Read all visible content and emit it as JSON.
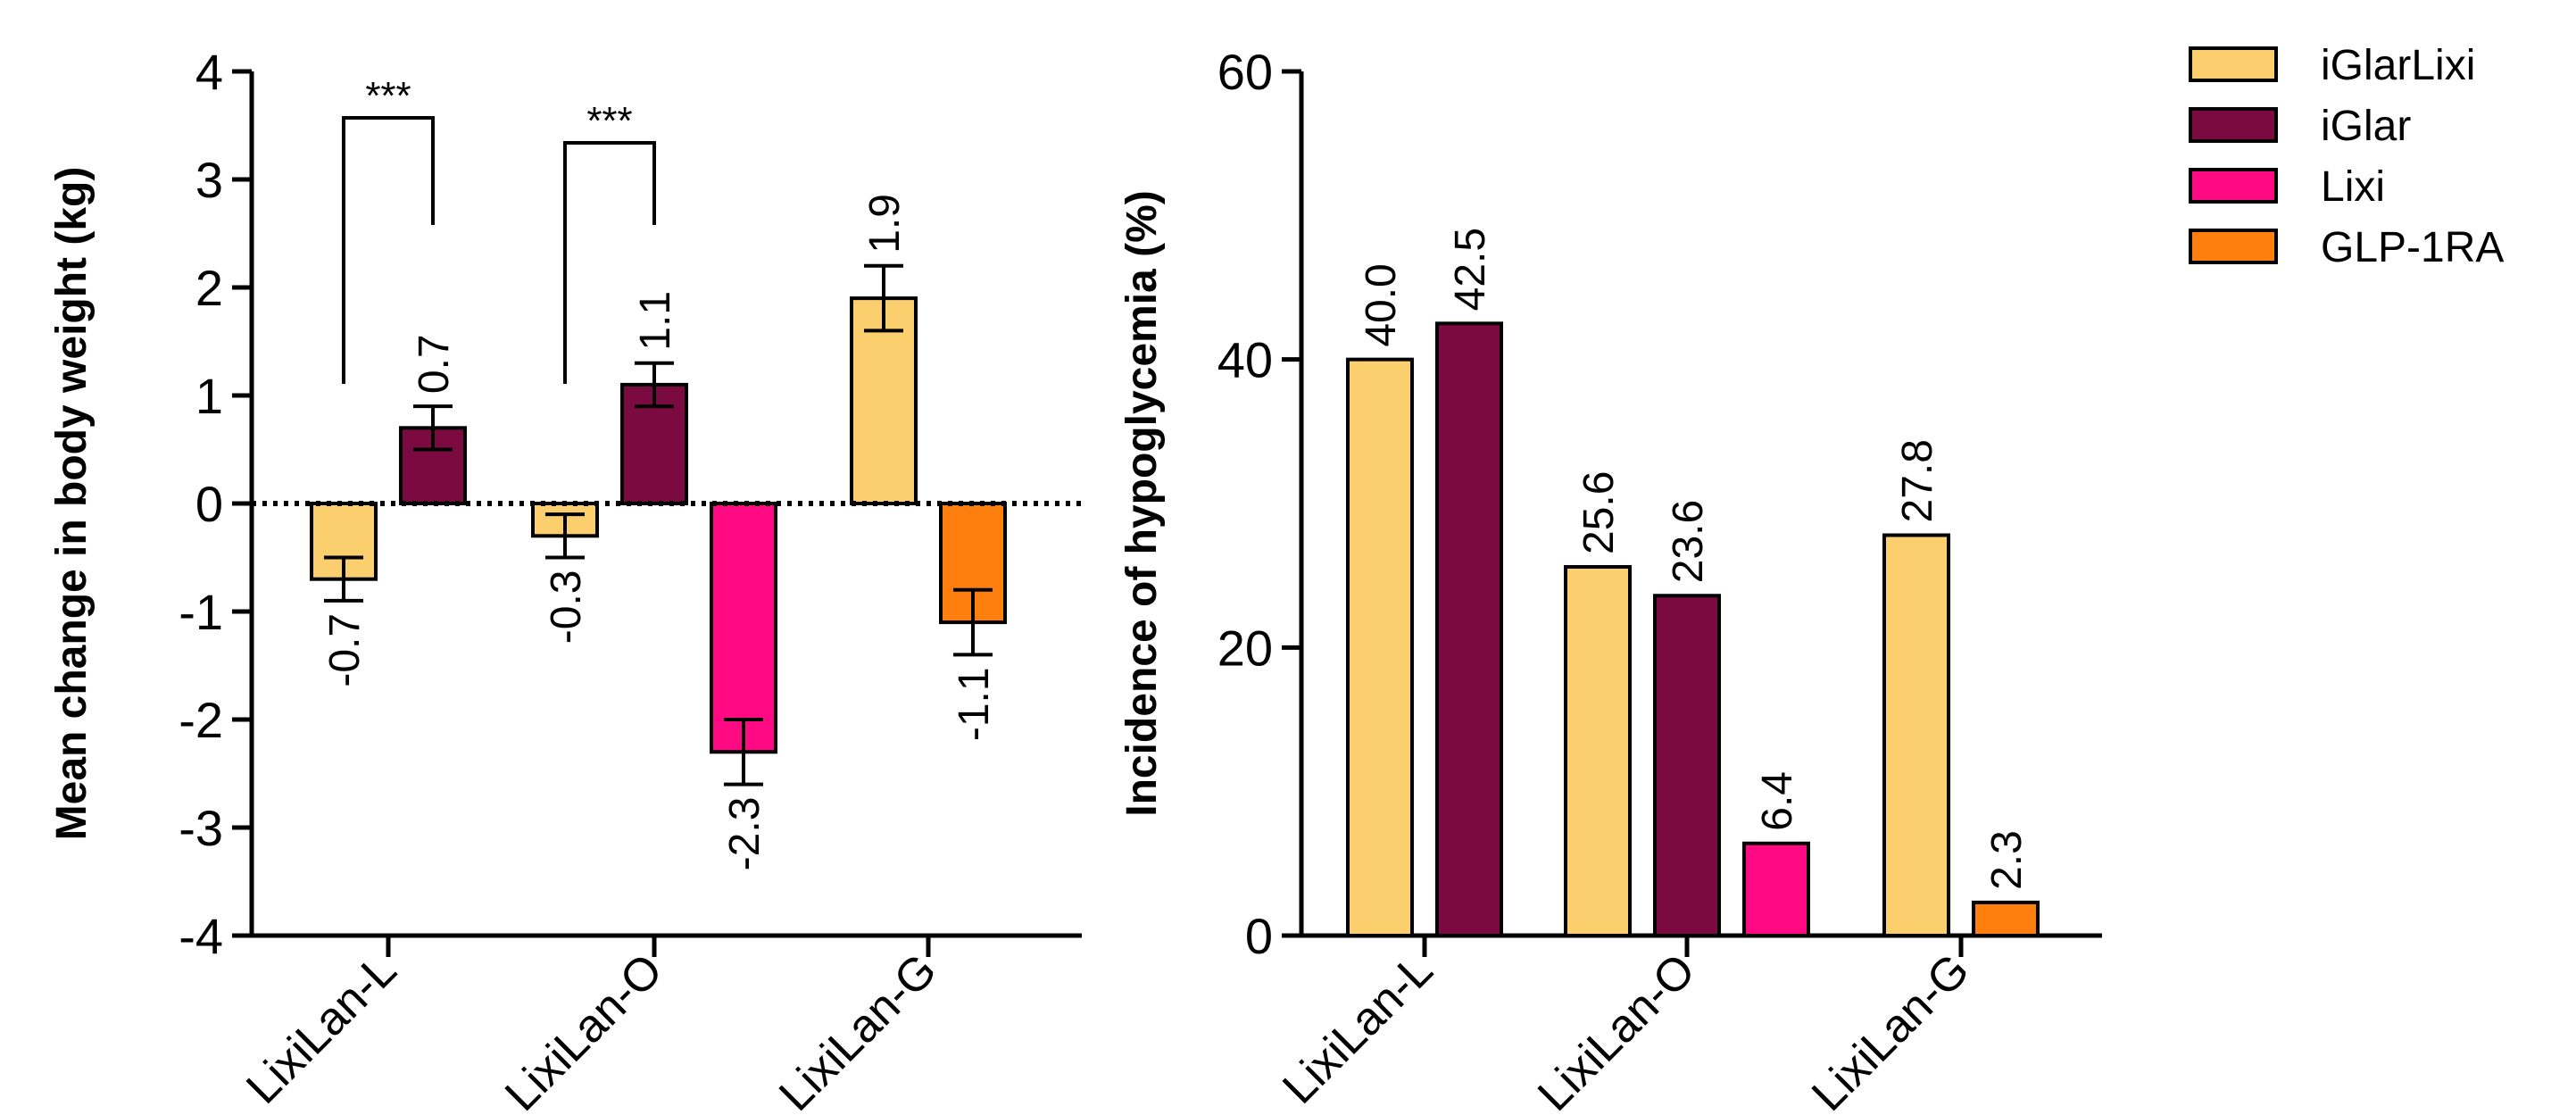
{
  "colors": {
    "iGlarLixi": "#FCCF6E",
    "iGlar": "#7B0A40",
    "Lixi": "#FF0A83",
    "GLP-1RA": "#FF7F0E"
  },
  "legend": {
    "items": [
      "iGlarLixi",
      "iGlar",
      "Lixi",
      "GLP-1RA"
    ]
  },
  "chart_data": [
    {
      "type": "bar",
      "title": "",
      "xlabel": "",
      "ylabel": "Mean change in body weight (kg)",
      "ylim": [
        -4,
        4
      ],
      "yticks": [
        4,
        3,
        2,
        1,
        0,
        -1,
        -2,
        -3,
        -4
      ],
      "ytick_labels": [
        "4",
        "3",
        "2",
        "1",
        "0",
        "-1",
        "-2",
        "-3",
        "-4"
      ],
      "categories": [
        "LixiLan-L",
        "LixiLan-O",
        "LixiLan-G"
      ],
      "groups": [
        {
          "category": "LixiLan-L",
          "bars": [
            {
              "series": "iGlarLixi",
              "value": -0.7,
              "error": 0.2,
              "label": "-0.7"
            },
            {
              "series": "iGlar",
              "value": 0.7,
              "error": 0.2,
              "label": "0.7"
            }
          ],
          "significance": "***"
        },
        {
          "category": "LixiLan-O",
          "bars": [
            {
              "series": "iGlarLixi",
              "value": -0.3,
              "error": 0.2,
              "label": "-0.3"
            },
            {
              "series": "iGlar",
              "value": 1.1,
              "error": 0.2,
              "label": "1.1"
            },
            {
              "series": "Lixi",
              "value": -2.3,
              "error": 0.3,
              "label": "-2.3"
            }
          ],
          "significance": "***"
        },
        {
          "category": "LixiLan-G",
          "bars": [
            {
              "series": "iGlarLixi",
              "value": 1.9,
              "error": 0.3,
              "label": "1.9"
            },
            {
              "series": "GLP-1RA",
              "value": -1.1,
              "error": 0.3,
              "label": "-1.1"
            }
          ]
        }
      ]
    },
    {
      "type": "bar",
      "title": "",
      "xlabel": "",
      "ylabel": "Incidence of hypoglycemia (%)",
      "ylim": [
        0,
        60
      ],
      "yticks": [
        60,
        40,
        20,
        0
      ],
      "ytick_labels": [
        "60",
        "40",
        "20",
        "0"
      ],
      "categories": [
        "LixiLan-L",
        "LixiLan-O",
        "LixiLan-G"
      ],
      "groups": [
        {
          "category": "LixiLan-L",
          "bars": [
            {
              "series": "iGlarLixi",
              "value": 40.0,
              "label": "40.0"
            },
            {
              "series": "iGlar",
              "value": 42.5,
              "label": "42.5"
            }
          ]
        },
        {
          "category": "LixiLan-O",
          "bars": [
            {
              "series": "iGlarLixi",
              "value": 25.6,
              "label": "25.6"
            },
            {
              "series": "iGlar",
              "value": 23.6,
              "label": "23.6"
            },
            {
              "series": "Lixi",
              "value": 6.4,
              "label": "6.4"
            }
          ]
        },
        {
          "category": "LixiLan-G",
          "bars": [
            {
              "series": "iGlarLixi",
              "value": 27.8,
              "label": "27.8"
            },
            {
              "series": "GLP-1RA",
              "value": 2.3,
              "label": "2.3"
            }
          ]
        }
      ]
    }
  ]
}
